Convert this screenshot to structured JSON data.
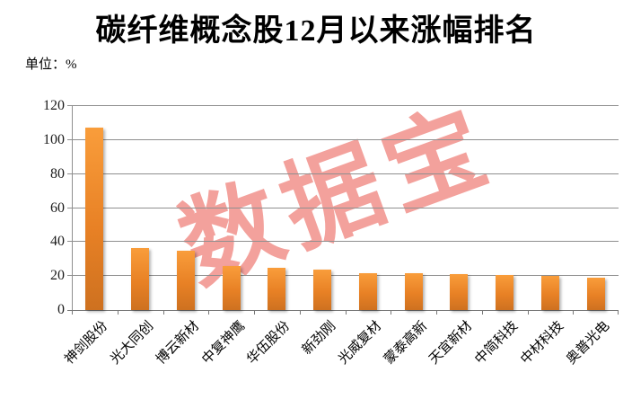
{
  "title": "碳纤维概念股12月以来涨幅排名",
  "unit_label": "单位：%",
  "watermark": "数据宝",
  "colors": {
    "bar_gradient_top": "#f99d3b",
    "bar_gradient_mid": "#e88125",
    "bar_gradient_bottom": "#ce7120",
    "watermark_pink": "#f3a19c",
    "gridline_gray": "#8f8f8f",
    "axis_gray": "#787878",
    "text_black": "#000000"
  },
  "y_axis": {
    "ticks": [
      0,
      20,
      40,
      60,
      80,
      100,
      120
    ]
  },
  "chart_data": {
    "type": "bar",
    "title": "碳纤维概念股12月以来涨幅排名",
    "unit": "%",
    "categories": [
      "神剑股份",
      "光大同创",
      "博云新材",
      "中复神鹰",
      "华伍股份",
      "新劲刚",
      "光威复材",
      "蒙泰高新",
      "天宜新材",
      "中简科技",
      "中材科技",
      "奥普光电"
    ],
    "values": [
      107.3,
      36.3,
      35.0,
      26.0,
      24.9,
      23.8,
      21.8,
      21.5,
      21.1,
      20.8,
      19.9,
      19.2
    ],
    "xlabel": "",
    "ylabel": "单位：%",
    "ylim": [
      0,
      120
    ],
    "ytick_interval": 20,
    "grid": true,
    "legend_position": "none",
    "watermark": "数据宝",
    "bar_color": "orange-gradient"
  }
}
